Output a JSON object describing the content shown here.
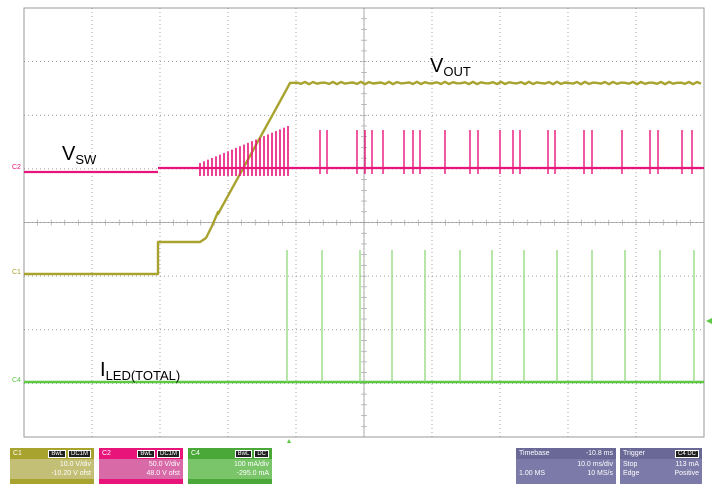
{
  "colors": {
    "c1": "#a8a22e",
    "c2": "#e8147a",
    "c4": "#5cc843",
    "grid": "#808080",
    "panel_trigger": "#7c7aa8"
  },
  "traces": {
    "vout_label": {
      "main": "V",
      "sub": "OUT"
    },
    "vsw_label": {
      "main": "V",
      "sub": "SW"
    },
    "iled_label": {
      "main": "I",
      "sub": "LED(TOTAL)"
    }
  },
  "markers": {
    "c2": "C2",
    "c1": "C1",
    "c4": "C4"
  },
  "channels": [
    {
      "name": "C1",
      "tag1": "BwL",
      "tag2": "DC1M",
      "scale": "10.0 V/div",
      "offset": "-10.20 V ofst"
    },
    {
      "name": "C2",
      "tag1": "BwL",
      "tag2": "DC1M",
      "scale": "50.0 V/div",
      "offset": "48.0 V ofst"
    },
    {
      "name": "C4",
      "tag1": "BwL",
      "tag2": "DC",
      "scale": "100 mA/div",
      "offset": "-295.0 mA"
    }
  ],
  "timebase": {
    "label": "Timebase",
    "delay": "-10.8 ms",
    "per_div": "10.0 ms/div",
    "samples": "1.00 MS",
    "rate": "10 MS/s"
  },
  "trigger": {
    "label": "Trigger",
    "tag": "C4 DC",
    "mode": "Stop",
    "level": "113 mA",
    "type": "Edge",
    "slope": "Positive"
  }
}
